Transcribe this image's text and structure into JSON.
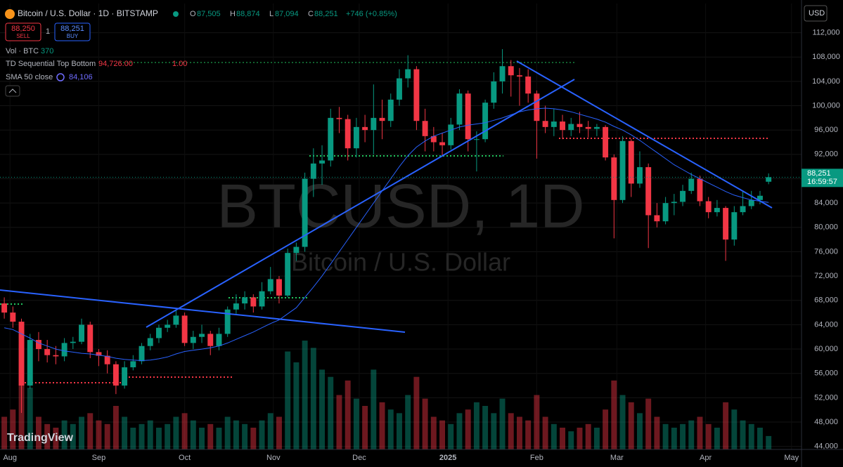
{
  "header": {
    "symbol": "Bitcoin / U.S. Dollar · 1D · BITSTAMP",
    "o_label": "O",
    "open": "87,505",
    "h_label": "H",
    "high": "88,874",
    "l_label": "L",
    "low": "87,094",
    "c_label": "C",
    "close": "88,251",
    "change": "+746 (+0.85%)"
  },
  "trade": {
    "sell_price": "88,250",
    "sell": "SELL",
    "quantity": "1",
    "buy_price": "88,251",
    "buy": "BUY"
  },
  "indicators": [
    {
      "name": "Vol · BTC",
      "value": "370"
    },
    {
      "name": "TD Sequential Top Bottom",
      "value": "94,726.00",
      "value2": "1.00"
    },
    {
      "name": "SMA 50 close",
      "value": "84,106"
    }
  ],
  "currency": "USD",
  "price_tag": {
    "price": "88,251",
    "countdown": "16:59:57"
  },
  "watermark": {
    "symbol": "BTCUSD, 1D",
    "name": "Bitcoin / U.S. Dollar"
  },
  "logo": "TradingView",
  "chart_data": {
    "type": "candlestick",
    "up_color": "#089981",
    "down_color": "#f23645",
    "sma_color": "#2962ff",
    "xlim": [
      -3.5,
      276.5
    ],
    "xticks": [
      {
        "value": 0,
        "label": "Aug"
      },
      {
        "value": 31,
        "label": "Sep"
      },
      {
        "value": 61,
        "label": "Oct"
      },
      {
        "value": 92,
        "label": "Nov"
      },
      {
        "value": 122,
        "label": "Dec"
      },
      {
        "value": 153,
        "label": "2025"
      },
      {
        "value": 184,
        "label": "Feb"
      },
      {
        "value": 212,
        "label": "Mar"
      },
      {
        "value": 243,
        "label": "Apr"
      },
      {
        "value": 273,
        "label": "May"
      }
    ],
    "ylim": [
      43500,
      116800
    ],
    "yticks": [
      {
        "value": 44000,
        "label": "44,000"
      },
      {
        "value": 48000,
        "label": "48,000"
      },
      {
        "value": 52000,
        "label": "52,000"
      },
      {
        "value": 56000,
        "label": "56,000"
      },
      {
        "value": 60000,
        "label": "60,000"
      },
      {
        "value": 64000,
        "label": "64,000"
      },
      {
        "value": 68000,
        "label": "68,000"
      },
      {
        "value": 72000,
        "label": "72,000"
      },
      {
        "value": 76000,
        "label": "76,000"
      },
      {
        "value": 80000,
        "label": "80,000"
      },
      {
        "value": 84000,
        "label": "84,000"
      },
      {
        "value": 88000,
        "label": "88,000"
      },
      {
        "value": 92000,
        "label": "92,000"
      },
      {
        "value": 96000,
        "label": "96,000"
      },
      {
        "value": 100000,
        "label": "100,000"
      },
      {
        "value": 104000,
        "label": "104,000"
      },
      {
        "value": 108000,
        "label": "108,000"
      },
      {
        "value": 112000,
        "label": "112,000"
      }
    ],
    "x": [
      -2,
      1,
      4,
      7,
      10,
      13,
      16,
      19,
      22,
      25,
      28,
      31,
      34,
      37,
      40,
      43,
      46,
      49,
      52,
      55,
      58,
      61,
      64,
      67,
      70,
      73,
      76,
      79,
      82,
      85,
      88,
      91,
      94,
      97,
      100,
      103,
      106,
      109,
      112,
      115,
      118,
      121,
      124,
      127,
      130,
      133,
      136,
      139,
      142,
      145,
      148,
      151,
      154,
      157,
      160,
      163,
      166,
      169,
      172,
      175,
      178,
      181,
      184,
      187,
      190,
      193,
      196,
      199,
      202,
      205,
      208,
      211,
      214,
      217,
      220,
      223,
      226,
      229,
      232,
      235,
      238,
      241,
      244,
      247,
      250,
      253,
      256,
      259,
      262,
      265
    ],
    "open": [
      67500,
      66000,
      64500,
      54000,
      61500,
      60000,
      59000,
      58800,
      61000,
      61200,
      64000,
      59500,
      58900,
      57500,
      54000,
      57000,
      58000,
      60500,
      61800,
      63500,
      64000,
      65500,
      61000,
      62000,
      62500,
      60500,
      62500,
      66500,
      67500,
      68500,
      67000,
      69500,
      71500,
      68800,
      75800,
      76800,
      88000,
      90500,
      91000,
      98000,
      97800,
      93000,
      96500,
      96000,
      98000,
      97500,
      101000,
      104500,
      106000,
      97500,
      95000,
      94000,
      93500,
      96900,
      102000,
      94500,
      94500,
      100500,
      104000,
      106500,
      105000,
      104800,
      102000,
      97500,
      96500,
      97400,
      96000,
      97000,
      96500,
      96200,
      96500,
      91500,
      84500,
      94200,
      87200,
      89900,
      82000,
      81000,
      84000,
      84200,
      86000,
      88000,
      84300,
      82500,
      83200,
      78000,
      82500,
      83500,
      84500,
      87505
    ],
    "high": [
      68500,
      67000,
      65000,
      62500,
      62800,
      61500,
      60500,
      61800,
      62000,
      65000,
      64500,
      60000,
      59800,
      58000,
      58000,
      59000,
      61000,
      62500,
      64000,
      64800,
      66500,
      66000,
      63000,
      64000,
      63000,
      63500,
      67000,
      69000,
      69500,
      69000,
      71000,
      73500,
      72000,
      76500,
      77500,
      89000,
      93000,
      93500,
      99500,
      99800,
      98500,
      98000,
      98500,
      103500,
      101000,
      102000,
      106000,
      108300,
      106500,
      99500,
      96500,
      95500,
      98000,
      102700,
      102500,
      95800,
      101000,
      105500,
      109300,
      107500,
      106200,
      106000,
      102500,
      100000,
      99500,
      98500,
      98000,
      99000,
      97500,
      97000,
      96800,
      92000,
      95000,
      94500,
      92500,
      90500,
      84000,
      85000,
      85500,
      87000,
      89000,
      88500,
      85000,
      84500,
      83500,
      83500,
      86000,
      86000,
      86000,
      88874
    ],
    "low": [
      65000,
      63500,
      49500,
      53500,
      58000,
      57800,
      57500,
      58000,
      60000,
      60800,
      58500,
      57200,
      56000,
      52600,
      53500,
      56500,
      57500,
      59800,
      61000,
      62800,
      63500,
      60500,
      60000,
      61000,
      59000,
      59800,
      62000,
      65800,
      66500,
      66000,
      66500,
      69000,
      67500,
      68500,
      74500,
      76000,
      85000,
      87000,
      90000,
      95500,
      91000,
      91500,
      94000,
      92000,
      94500,
      96500,
      100000,
      103000,
      96000,
      92500,
      92500,
      91800,
      92800,
      96000,
      92500,
      89200,
      94000,
      99500,
      102000,
      101500,
      100000,
      100500,
      91300,
      95500,
      95000,
      94500,
      95000,
      95500,
      94800,
      95000,
      91000,
      78200,
      84000,
      85000,
      86500,
      76600,
      80000,
      80500,
      82000,
      83500,
      85500,
      83500,
      81500,
      81800,
      74500,
      77000,
      82000,
      83000,
      83800,
      87094
    ],
    "close": [
      66000,
      64500,
      54000,
      61500,
      60000,
      59000,
      58800,
      61000,
      61200,
      64000,
      59500,
      58900,
      57500,
      54000,
      57000,
      58000,
      60500,
      61800,
      63500,
      64000,
      65500,
      61000,
      62000,
      62500,
      60500,
      62500,
      66500,
      67500,
      68500,
      67000,
      69500,
      71500,
      68800,
      75800,
      76800,
      88000,
      90500,
      91000,
      98000,
      97800,
      93000,
      96500,
      96000,
      98000,
      97500,
      101000,
      104500,
      106000,
      97500,
      95000,
      94000,
      93500,
      96900,
      102000,
      94500,
      94500,
      100500,
      104000,
      106500,
      105000,
      104800,
      102000,
      97500,
      96500,
      97400,
      96000,
      97000,
      96500,
      96200,
      96500,
      91500,
      84500,
      94200,
      87200,
      89900,
      82000,
      81000,
      84000,
      84200,
      86000,
      88000,
      84300,
      82500,
      83200,
      78000,
      82500,
      83500,
      84500,
      85200,
      88251
    ],
    "volume": [
      900,
      1100,
      2900,
      1700,
      900,
      700,
      600,
      800,
      700,
      900,
      1000,
      800,
      700,
      1200,
      900,
      600,
      700,
      800,
      600,
      700,
      900,
      1000,
      800,
      600,
      700,
      600,
      900,
      800,
      700,
      600,
      800,
      1000,
      900,
      2700,
      2400,
      3000,
      2800,
      2200,
      2000,
      1500,
      1900,
      1400,
      1200,
      2200,
      1300,
      1100,
      1000,
      1500,
      2000,
      1400,
      900,
      800,
      700,
      1000,
      1100,
      1300,
      1200,
      1000,
      1400,
      1000,
      900,
      800,
      1500,
      900,
      700,
      600,
      500,
      600,
      700,
      600,
      1100,
      1900,
      1500,
      1300,
      1000,
      1400,
      900,
      700,
      600,
      700,
      800,
      900,
      700,
      600,
      1300,
      1100,
      800,
      700,
      600,
      370
    ],
    "sma": [
      63500,
      63200,
      62500,
      61800,
      61000,
      60500,
      60000,
      59700,
      59500,
      59300,
      59200,
      59000,
      58800,
      58500,
      58300,
      58200,
      58100,
      58200,
      58400,
      58700,
      59200,
      59600,
      59800,
      60000,
      60200,
      60500,
      61000,
      61600,
      62200,
      62800,
      63500,
      64200,
      64800,
      65800,
      66800,
      68500,
      70200,
      72000,
      74000,
      76000,
      78000,
      80000,
      82000,
      84000,
      86000,
      88000,
      90000,
      91800,
      93200,
      94200,
      95000,
      95500,
      96000,
      96500,
      96800,
      97000,
      97200,
      97600,
      98000,
      98500,
      99000,
      99300,
      99500,
      99600,
      99500,
      99300,
      99000,
      98600,
      98200,
      97800,
      97300,
      96600,
      96000,
      95200,
      94300,
      93300,
      92300,
      91300,
      90300,
      89500,
      88700,
      88000,
      87300,
      86600,
      85900,
      85300,
      84900,
      84500,
      84300,
      84106
    ]
  }
}
